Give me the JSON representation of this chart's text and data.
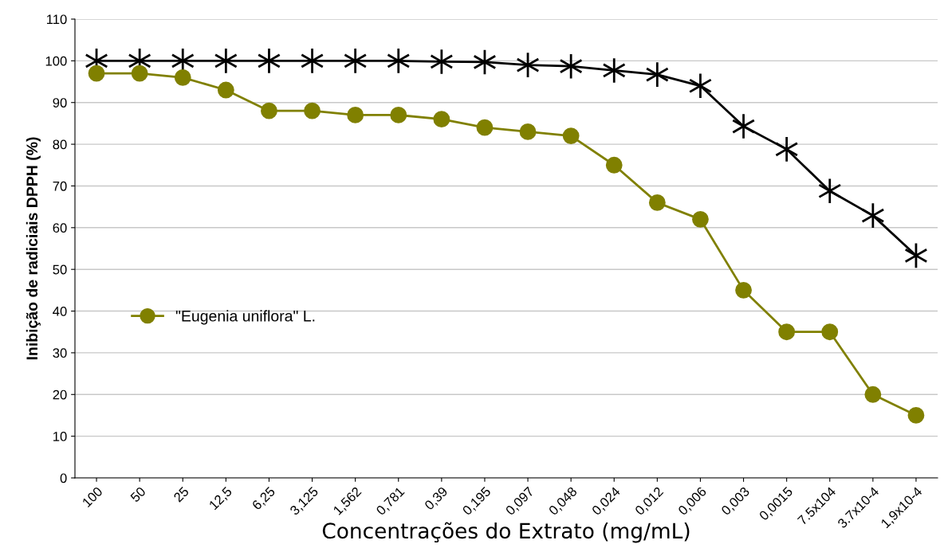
{
  "chart_data": {
    "type": "line",
    "xlabel": "Concentrações do Extrato (mg/mL)",
    "ylabel": "Inibição de radiciais DPPH (%)",
    "categories": [
      "100",
      "50",
      "25",
      "12,5",
      "6,25",
      "3,125",
      "1,562",
      "0,781",
      "0,39",
      "0,195",
      "0,097",
      "0,048",
      "0,024",
      "0,012",
      "0,006",
      "0,003",
      "0,0015",
      "7.5x104",
      "3.7x10-4",
      "1,9x10-4"
    ],
    "series": [
      {
        "color": "#000000",
        "marker": "cross",
        "values": [
          100,
          100,
          100,
          100,
          100,
          100,
          100,
          100,
          99.8,
          99.7,
          99,
          98.7,
          97.7,
          96.7,
          94,
          84.3,
          78.8,
          68.8,
          62.9,
          53.3
        ]
      },
      {
        "name": "\"Eugenia uniflora\" L.",
        "color": "#808000",
        "marker": "circle",
        "values": [
          97,
          97,
          96,
          93,
          88,
          88,
          87,
          87,
          86,
          84,
          83,
          82,
          75,
          66,
          62,
          45,
          35,
          35,
          20,
          15
        ]
      }
    ],
    "ylim": [
      0,
      110
    ],
    "yticks": [
      0,
      10,
      20,
      30,
      40,
      50,
      60,
      70,
      80,
      90,
      100,
      110
    ],
    "grid": "y",
    "legend": "center left",
    "line_style": "solid"
  }
}
